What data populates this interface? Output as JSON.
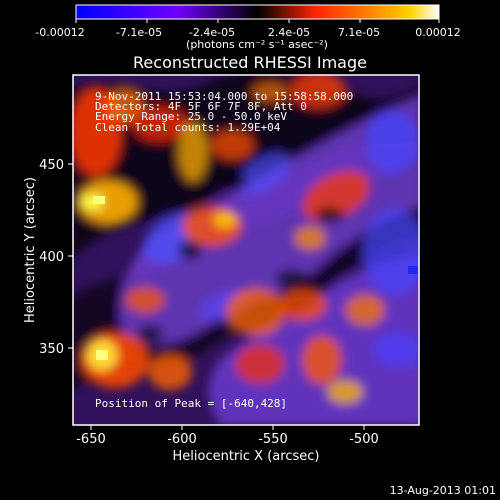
{
  "colorbar": {
    "ticks": [
      "-0.00012",
      "-7.1e-05",
      "-2.4e-05",
      "2.4e-05",
      "7.1e-05",
      "0.00012"
    ],
    "units": "(photons cm⁻² s⁻¹ asec⁻²)",
    "colors": [
      "#0000ff",
      "#7000ff",
      "#000000",
      "#ff2400",
      "#ff8a00",
      "#ffd200",
      "#ffffff"
    ]
  },
  "chart_data": {
    "type": "heatmap",
    "title": "Reconstructed RHESSI Image",
    "xlabel": "Heliocentric X (arcsec)",
    "ylabel": "Heliocentric Y (arcsec)",
    "xlim": [
      -660,
      -470
    ],
    "ylim": [
      300,
      490
    ],
    "xticks": [
      -650,
      -600,
      -550,
      -500
    ],
    "yticks": [
      350,
      400,
      450
    ],
    "colorbar_range": [
      -0.00012,
      0.00012
    ],
    "peak": {
      "x": -640,
      "y": 428
    },
    "annotations": [
      "9-Nov-2011 15:53:04.000 to 15:58:58.000",
      "Detectors: 4F 5F 6F 7F 8F, Att 0",
      "Energy Range: 25.0 - 50.0 keV",
      "Clean    Total counts: 1.29E+04",
      "Position of Peak = [-640,428]"
    ]
  },
  "footer": {
    "timestamp": "13-Aug-2013 01:01"
  }
}
